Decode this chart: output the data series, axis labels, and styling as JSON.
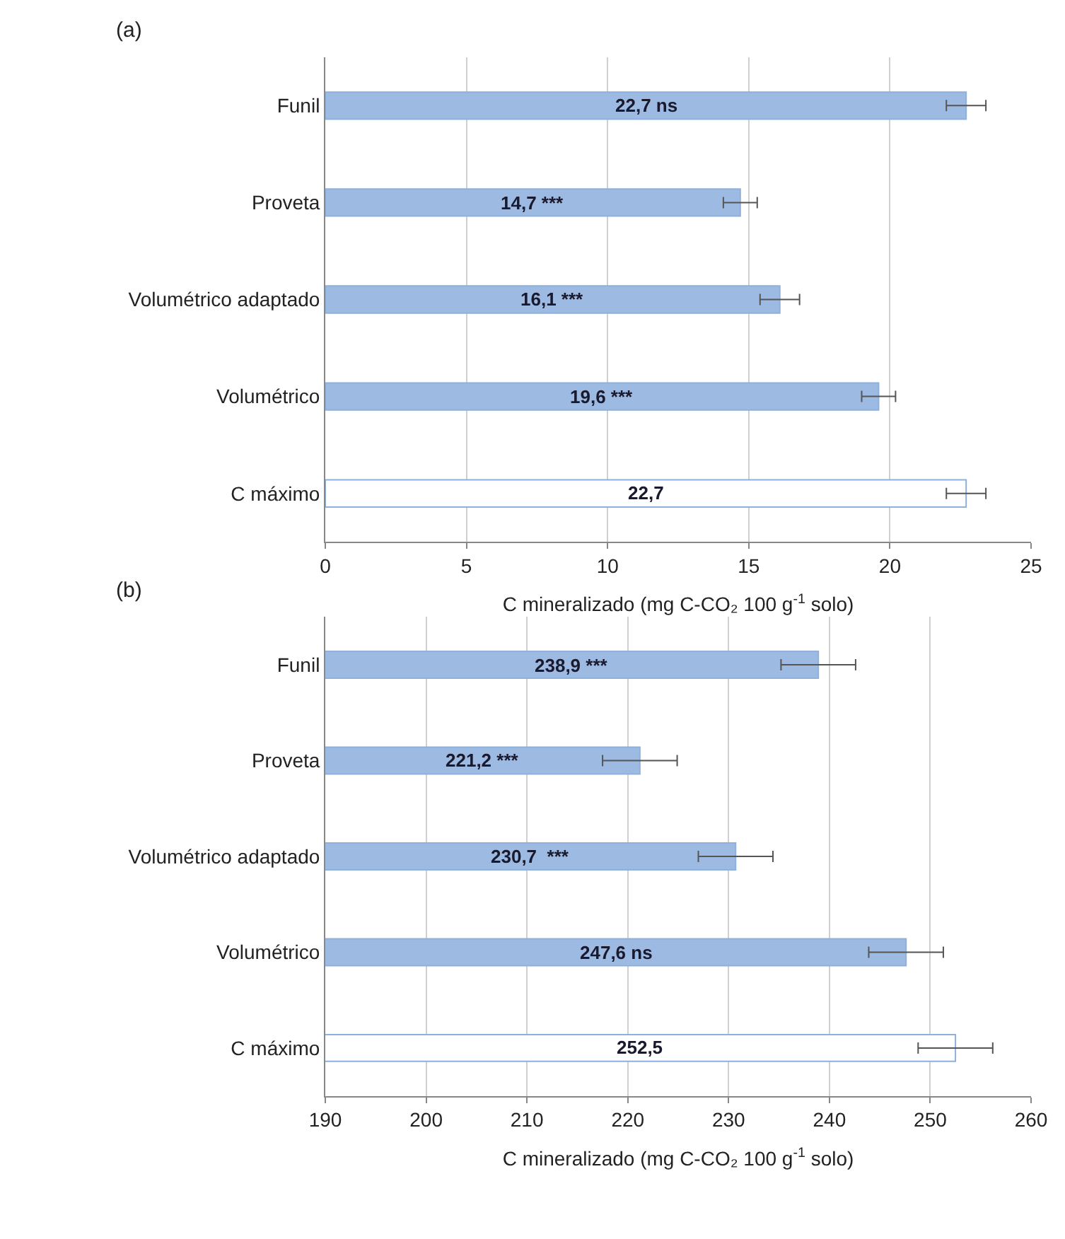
{
  "chart_data": [
    {
      "type": "bar",
      "orientation": "horizontal",
      "title": "(a)",
      "xlabel": "C mineralizado (mg C-CO₂ 100 g$^{-1}$ solo)",
      "categories": [
        "Funil",
        "Proveta",
        "Volumétrico adaptado",
        "Volumétrico",
        "C máximo"
      ],
      "values": [
        22.7,
        14.7,
        16.1,
        19.6,
        22.7
      ],
      "colors": [
        "#9dbbe2",
        "#9dbbe2",
        "#9dbbe2",
        "#9dbbe2",
        "#ffffff"
      ],
      "errors": [
        0.7,
        0.6,
        0.7,
        0.6,
        0.7
      ],
      "value_labels": [
        "22,7 ns",
        "14,7 ***",
        "16,1 ***",
        "19,6 ***",
        "22,7"
      ],
      "xlim": [
        0,
        25
      ],
      "xticks": [
        0,
        5,
        10,
        15,
        20,
        25
      ],
      "grid": "x",
      "legend": false
    },
    {
      "type": "bar",
      "orientation": "horizontal",
      "title": "(b)",
      "xlabel": "C mineralizado (mg C-CO₂ 100 g$^{-1}$ solo)",
      "categories": [
        "Funil",
        "Proveta",
        "Volumétrico adaptado",
        "Volumétrico",
        "C máximo"
      ],
      "values": [
        238.9,
        221.2,
        230.7,
        247.6,
        252.5
      ],
      "colors": [
        "#9dbbe2",
        "#9dbbe2",
        "#9dbbe2",
        "#9dbbe2",
        "#ffffff"
      ],
      "errors": [
        3.7,
        3.7,
        3.7,
        3.7,
        3.7
      ],
      "value_labels": [
        "238,9 ***",
        "221,2 ***",
        "230,7  ***",
        "247,6 ns",
        "252,5"
      ],
      "xlim": [
        190,
        260
      ],
      "xticks": [
        190,
        200,
        210,
        220,
        230,
        240,
        250,
        260
      ],
      "grid": "x",
      "legend": false
    }
  ]
}
